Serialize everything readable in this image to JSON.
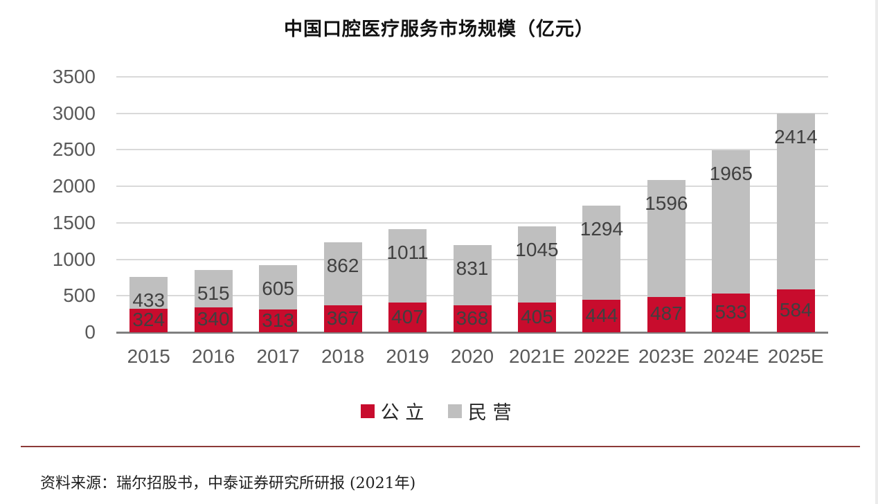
{
  "page": {
    "title": "中国口腔医疗服务市场规模（亿元）",
    "source_note": "资料来源：瑞尔招股书，中泰证券研究所研报 (2021年)"
  },
  "colors": {
    "public_series": "#C80C2D",
    "private_series": "#BFBFBF",
    "separator_line": "#8C3A38",
    "gridline": "#D9D9D9",
    "axis_line": "#7F7F7F",
    "axis_label": "#595959",
    "data_label": "#404040"
  },
  "chart_data": {
    "type": "bar",
    "stacked": true,
    "title": "中国口腔医疗服务市场规模（亿元）",
    "categories": [
      "2015",
      "2016",
      "2017",
      "2018",
      "2019",
      "2020",
      "2021E",
      "2022E",
      "2023E",
      "2024E",
      "2025E"
    ],
    "series": [
      {
        "name": "公立",
        "color_key": "public_series",
        "values": [
          324,
          340,
          313,
          367,
          407,
          368,
          405,
          444,
          487,
          533,
          584
        ]
      },
      {
        "name": "民营",
        "color_key": "private_series",
        "values": [
          433,
          515,
          605,
          862,
          1011,
          831,
          1045,
          1294,
          1596,
          1965,
          2414
        ]
      }
    ],
    "totals": [
      757,
      855,
      918,
      1229,
      1418,
      1199,
      1450,
      1738,
      2083,
      2498,
      2998
    ],
    "xlabel": "",
    "ylabel": "",
    "ylim": [
      0,
      3500
    ],
    "yticks": [
      0,
      500,
      1000,
      1500,
      2000,
      2500,
      3000,
      3500
    ],
    "grid": true,
    "legend_position": "bottom",
    "data_labels": "shown"
  }
}
